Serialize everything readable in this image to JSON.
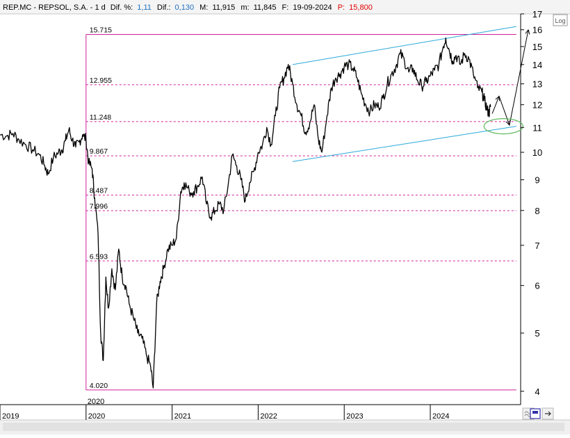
{
  "header": {
    "symbol": "REP.MC - REPSOL,  S.A. - 1 d",
    "dif_pct_label": "Dif. %:",
    "dif_pct_value": "1,11",
    "dif_label": "Dif.:",
    "dif_value": "0,130",
    "high_label": "M:",
    "high_value": "11,915",
    "low_label": "m:",
    "low_value": "11,845",
    "date_label": "F:",
    "date_value": "19-09-2024",
    "price_label": "P:",
    "price_value": "15,800",
    "up_color": "#1f6fbf",
    "price_color": "#e00000"
  },
  "toolbar": {
    "log_label": "Log",
    "icons": [
      "double-chevron-icon",
      "page-layout-icon",
      "scroll-arrow-icon"
    ]
  },
  "chart_data": {
    "type": "line",
    "title": "",
    "xlabel": "",
    "ylabel": "",
    "y_scale": "log",
    "ylim": [
      3.8,
      17
    ],
    "y_ticks": [
      4,
      5,
      6,
      7,
      8,
      9,
      10,
      11,
      12,
      13,
      14,
      15,
      16,
      17
    ],
    "x_ticks": [
      "2019",
      "2020",
      "2021",
      "2022",
      "2023",
      "2024"
    ],
    "x_range": [
      2019.0,
      2025.05
    ],
    "period_marker": "2020",
    "grid": false,
    "series": [
      {
        "name": "",
        "color": "#000000",
        "points": [
          [
            2019.0,
            10.7
          ],
          [
            2019.08,
            10.65
          ],
          [
            2019.15,
            10.75
          ],
          [
            2019.22,
            10.5
          ],
          [
            2019.3,
            10.3
          ],
          [
            2019.38,
            10.1
          ],
          [
            2019.46,
            9.9
          ],
          [
            2019.52,
            9.5
          ],
          [
            2019.56,
            9.2
          ],
          [
            2019.62,
            9.8
          ],
          [
            2019.68,
            10.0
          ],
          [
            2019.72,
            10.1
          ],
          [
            2019.76,
            10.45
          ],
          [
            2019.8,
            10.9
          ],
          [
            2019.84,
            10.5
          ],
          [
            2019.88,
            10.2
          ],
          [
            2019.92,
            10.4
          ],
          [
            2019.96,
            10.7
          ],
          [
            2020.0,
            10.5
          ],
          [
            2020.03,
            9.6
          ],
          [
            2020.07,
            9.4
          ],
          [
            2020.1,
            8.4
          ],
          [
            2020.14,
            7.3
          ],
          [
            2020.17,
            5.0
          ],
          [
            2020.2,
            4.5
          ],
          [
            2020.23,
            6.2
          ],
          [
            2020.26,
            5.5
          ],
          [
            2020.3,
            6.4
          ],
          [
            2020.34,
            5.9
          ],
          [
            2020.38,
            6.9
          ],
          [
            2020.42,
            6.2
          ],
          [
            2020.46,
            6.0
          ],
          [
            2020.5,
            5.6
          ],
          [
            2020.55,
            5.3
          ],
          [
            2020.6,
            5.0
          ],
          [
            2020.65,
            4.9
          ],
          [
            2020.7,
            4.6
          ],
          [
            2020.75,
            4.4
          ],
          [
            2020.78,
            4.05
          ],
          [
            2020.82,
            5.6
          ],
          [
            2020.86,
            6.1
          ],
          [
            2020.9,
            6.4
          ],
          [
            2020.95,
            6.9
          ],
          [
            2021.0,
            7.0
          ],
          [
            2021.05,
            7.2
          ],
          [
            2021.1,
            8.6
          ],
          [
            2021.14,
            8.9
          ],
          [
            2021.2,
            8.6
          ],
          [
            2021.25,
            8.6
          ],
          [
            2021.3,
            8.8
          ],
          [
            2021.35,
            9.1
          ],
          [
            2021.4,
            8.2
          ],
          [
            2021.45,
            7.8
          ],
          [
            2021.5,
            8.0
          ],
          [
            2021.55,
            8.2
          ],
          [
            2021.6,
            8.0
          ],
          [
            2021.65,
            8.8
          ],
          [
            2021.7,
            9.9
          ],
          [
            2021.75,
            9.5
          ],
          [
            2021.8,
            9.0
          ],
          [
            2021.85,
            8.3
          ],
          [
            2021.9,
            8.9
          ],
          [
            2021.95,
            9.3
          ],
          [
            2022.0,
            10.0
          ],
          [
            2022.05,
            10.3
          ],
          [
            2022.1,
            11.0
          ],
          [
            2022.15,
            10.3
          ],
          [
            2022.2,
            11.5
          ],
          [
            2022.25,
            12.8
          ],
          [
            2022.3,
            13.3
          ],
          [
            2022.35,
            14.0
          ],
          [
            2022.4,
            13.0
          ],
          [
            2022.45,
            12.0
          ],
          [
            2022.5,
            11.5
          ],
          [
            2022.55,
            10.8
          ],
          [
            2022.6,
            11.2
          ],
          [
            2022.65,
            12.0
          ],
          [
            2022.7,
            10.5
          ],
          [
            2022.74,
            10.0
          ],
          [
            2022.8,
            11.5
          ],
          [
            2022.85,
            12.8
          ],
          [
            2022.9,
            13.3
          ],
          [
            2022.95,
            13.5
          ],
          [
            2023.0,
            13.9
          ],
          [
            2023.05,
            14.0
          ],
          [
            2023.1,
            13.8
          ],
          [
            2023.15,
            13.3
          ],
          [
            2023.2,
            12.5
          ],
          [
            2023.25,
            12.0
          ],
          [
            2023.3,
            11.7
          ],
          [
            2023.35,
            12.0
          ],
          [
            2023.4,
            11.9
          ],
          [
            2023.45,
            12.3
          ],
          [
            2023.5,
            13.0
          ],
          [
            2023.55,
            13.5
          ],
          [
            2023.6,
            13.9
          ],
          [
            2023.65,
            14.6
          ],
          [
            2023.7,
            14.2
          ],
          [
            2023.75,
            13.6
          ],
          [
            2023.8,
            13.8
          ],
          [
            2023.85,
            13.2
          ],
          [
            2023.9,
            12.9
          ],
          [
            2023.95,
            13.1
          ],
          [
            2024.0,
            13.4
          ],
          [
            2024.05,
            13.7
          ],
          [
            2024.1,
            14.0
          ],
          [
            2024.15,
            15.0
          ],
          [
            2024.18,
            15.5
          ],
          [
            2024.22,
            14.8
          ],
          [
            2024.26,
            14.2
          ],
          [
            2024.3,
            14.5
          ],
          [
            2024.35,
            14.0
          ],
          [
            2024.4,
            14.6
          ],
          [
            2024.45,
            14.3
          ],
          [
            2024.5,
            13.5
          ],
          [
            2024.55,
            12.8
          ],
          [
            2024.6,
            12.6
          ],
          [
            2024.63,
            12.2
          ],
          [
            2024.66,
            11.8
          ],
          [
            2024.68,
            11.6
          ],
          [
            2024.7,
            11.9
          ]
        ]
      }
    ],
    "projection": {
      "color": "#000000",
      "points": [
        [
          2024.72,
          11.6
        ],
        [
          2024.8,
          12.4
        ],
        [
          2024.92,
          11.1
        ],
        [
          2025.14,
          16.0
        ]
      ]
    },
    "channel": {
      "color": "#29a8d8",
      "upper": [
        [
          2022.4,
          14.0
        ],
        [
          2025.0,
          16.2
        ]
      ],
      "lower": [
        [
          2022.4,
          9.65
        ],
        [
          2025.0,
          11.05
        ]
      ]
    },
    "levels": [
      {
        "label": "15.715",
        "value": 15.715,
        "style": "solid"
      },
      {
        "label": "12.955",
        "value": 12.955,
        "style": "dashed"
      },
      {
        "label": "11.248",
        "value": 11.248,
        "style": "dashed"
      },
      {
        "label": "9.867",
        "value": 9.867,
        "style": "dashed"
      },
      {
        "label": "8.487",
        "value": 8.487,
        "style": "dashed"
      },
      {
        "label": "7.996",
        "value": 7.996,
        "style": "dashed"
      },
      {
        "label": "6.593",
        "value": 6.593,
        "style": "dashed"
      },
      {
        "label": "4.020",
        "value": 4.02,
        "style": "solid"
      }
    ],
    "levels_color": "#d0209a",
    "levels_x_range": [
      2020.0,
      2025.0
    ],
    "target_ellipse": {
      "color": "#5cb85c",
      "center": [
        2024.85,
        11.05
      ]
    }
  }
}
